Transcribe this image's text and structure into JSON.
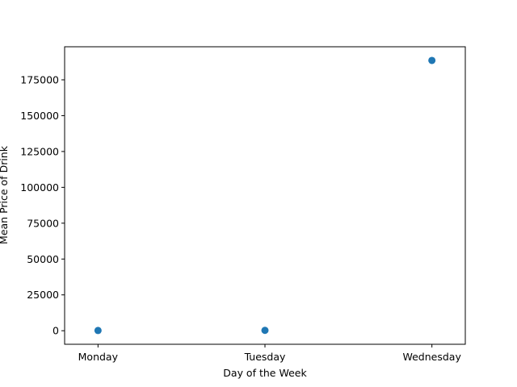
{
  "chart_data": {
    "type": "scatter",
    "title": "",
    "xlabel": "Day of the Week",
    "ylabel": "Mean Price of Drink",
    "categories": [
      "Monday",
      "Tuesday",
      "Wednesday"
    ],
    "series": [
      {
        "values": [
          150,
          250,
          188500
        ],
        "color": "#1f77b4"
      }
    ],
    "ylim": [
      -9450,
      198050
    ],
    "yticks": [
      0,
      25000,
      50000,
      75000,
      100000,
      125000,
      150000,
      175000
    ],
    "grid": false,
    "legend": "none"
  }
}
